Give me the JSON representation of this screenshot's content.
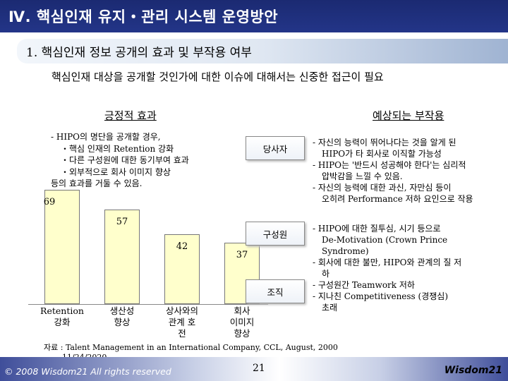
{
  "header": {
    "title": "Ⅳ. 핵심인재 유지・관리 시스템 운영방안"
  },
  "section": {
    "subtitle": "1. 핵심인재 정보 공개의 효과 및 부작용 여부",
    "lead_text": "핵심인재 대상을 공개할 것인가에 대한 이슈에 대해서는 신중한 접근이 필요"
  },
  "positive": {
    "heading": "긍정적 효과",
    "lines": [
      "- HIPO의 명단을 공개할 경우,",
      "・핵심 인재의 Retention 강화",
      "・다른 구성원에 대한 동기부여 효과",
      "・외부적으로 회사 이미지 향상",
      "등의 효과를 거둘 수 있음."
    ]
  },
  "chart_data": {
    "type": "bar",
    "categories": [
      "Retention\n강화",
      "생산성\n향상",
      "상사와의\n관계 호\n전",
      "회사\n이미지\n향상"
    ],
    "values": [
      69,
      57,
      42,
      37
    ],
    "ylim": [
      0,
      80
    ]
  },
  "negative": {
    "heading": "예상되는 부작용",
    "groups": [
      {
        "label": "당사자",
        "lines": [
          "- 자신의 능력이 뛰어나다는 것을 알게 된",
          "HIPO가 타 회사로 이직할 가능성",
          "- HIPO는 '반드시 성공해야 한다'는 심리적",
          "압박감을 느낄 수 있음.",
          "- 자신의 능력에 대한 과신, 자만심 등이",
          "오히려 Performance 저하 요인으로 작용"
        ]
      },
      {
        "label": "구성원",
        "lines": [
          "- HIPO에 대한 질투심, 시기 등으로",
          "De-Motivation (Crown Prince",
          "Syndrome)",
          "- 회사에 대한 불만, HIPO와 관계의 질 저",
          "하",
          "- 구성원간 Teamwork 저하",
          "- 지나친 Competitiveness (경쟁심)",
          "초래"
        ]
      },
      {
        "label": "조직",
        "lines": []
      }
    ]
  },
  "source": {
    "line1": "자료 : Talent Management in an International Company, CCL, August, 2000",
    "line2": "11/24/2020"
  },
  "footer": {
    "copyright": "© 2008  Wisdom21  All rights reserved",
    "page_number": "21",
    "brand": "Wisdom21"
  }
}
